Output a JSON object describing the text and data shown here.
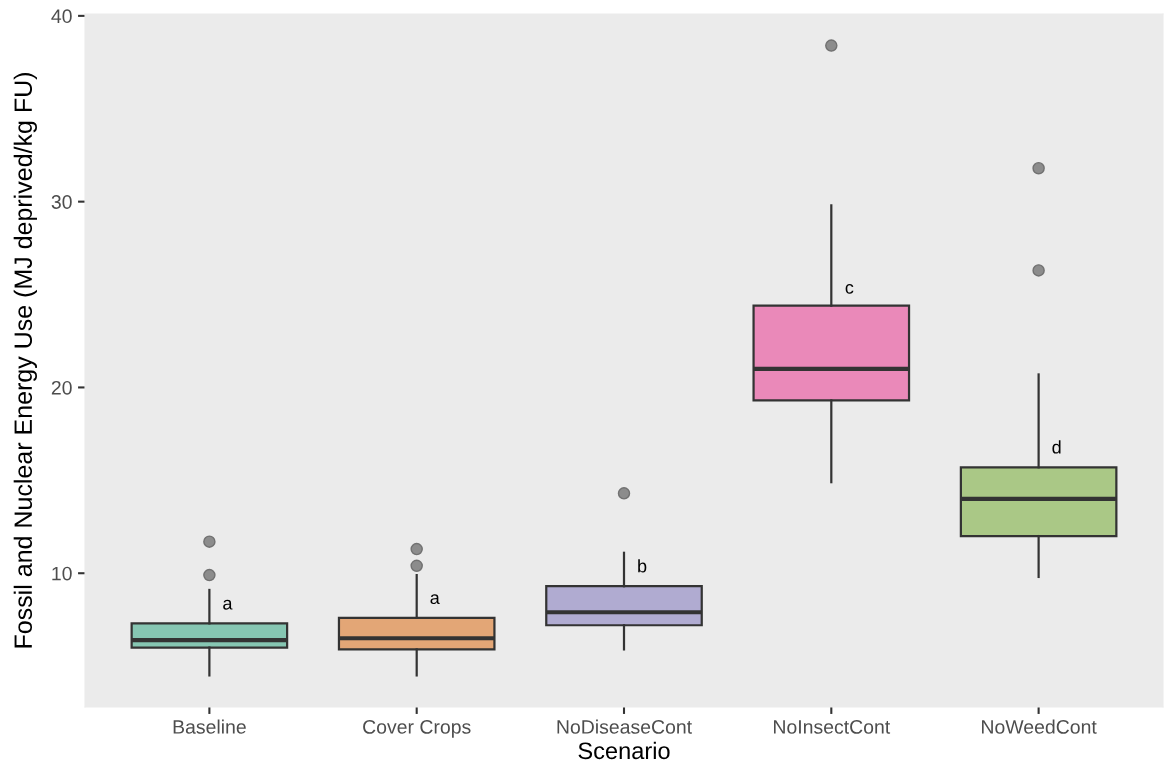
{
  "chart_data": {
    "type": "box",
    "xlabel": "Scenario",
    "ylabel": "Fossil and Nuclear Energy Use (MJ deprived/kg FU)",
    "categories": [
      "Baseline",
      "Cover Crops",
      "NoDiseaseCont",
      "NoInsectCont",
      "NoWeedCont"
    ],
    "boxes": [
      {
        "low": 4.5,
        "q1": 6.0,
        "median": 6.4,
        "q3": 7.3,
        "high": 9.1,
        "outliers": [
          9.9,
          11.7
        ]
      },
      {
        "low": 4.5,
        "q1": 5.9,
        "median": 6.5,
        "q3": 7.6,
        "high": 9.9,
        "outliers": [
          10.4,
          11.3
        ]
      },
      {
        "low": 5.9,
        "q1": 7.2,
        "median": 7.9,
        "q3": 9.3,
        "high": 11.1,
        "outliers": [
          14.3
        ]
      },
      {
        "low": 14.9,
        "q1": 19.3,
        "median": 21.0,
        "q3": 24.4,
        "high": 29.8,
        "outliers": [
          38.4
        ]
      },
      {
        "low": 9.8,
        "q1": 12.0,
        "median": 14.0,
        "q3": 15.7,
        "high": 20.7,
        "outliers": [
          26.3,
          31.8
        ]
      }
    ],
    "colors": [
      "#86c6b2",
      "#e3a676",
      "#b0abd1",
      "#ea89b9",
      "#aac886"
    ],
    "ylim": [
      2.8,
      40.1
    ],
    "yticks": [
      10,
      20,
      30,
      40
    ],
    "grid": false,
    "annotations": [
      {
        "text": "a",
        "x": "Baseline",
        "y": 8.3
      },
      {
        "text": "a",
        "x": "Cover Crops",
        "y": 8.6
      },
      {
        "text": "b",
        "x": "NoDiseaseCont",
        "y": 10.3
      },
      {
        "text": "c",
        "x": "NoInsectCont",
        "y": 25.3
      },
      {
        "text": "d",
        "x": "NoWeedCont",
        "y": 16.7
      }
    ]
  }
}
